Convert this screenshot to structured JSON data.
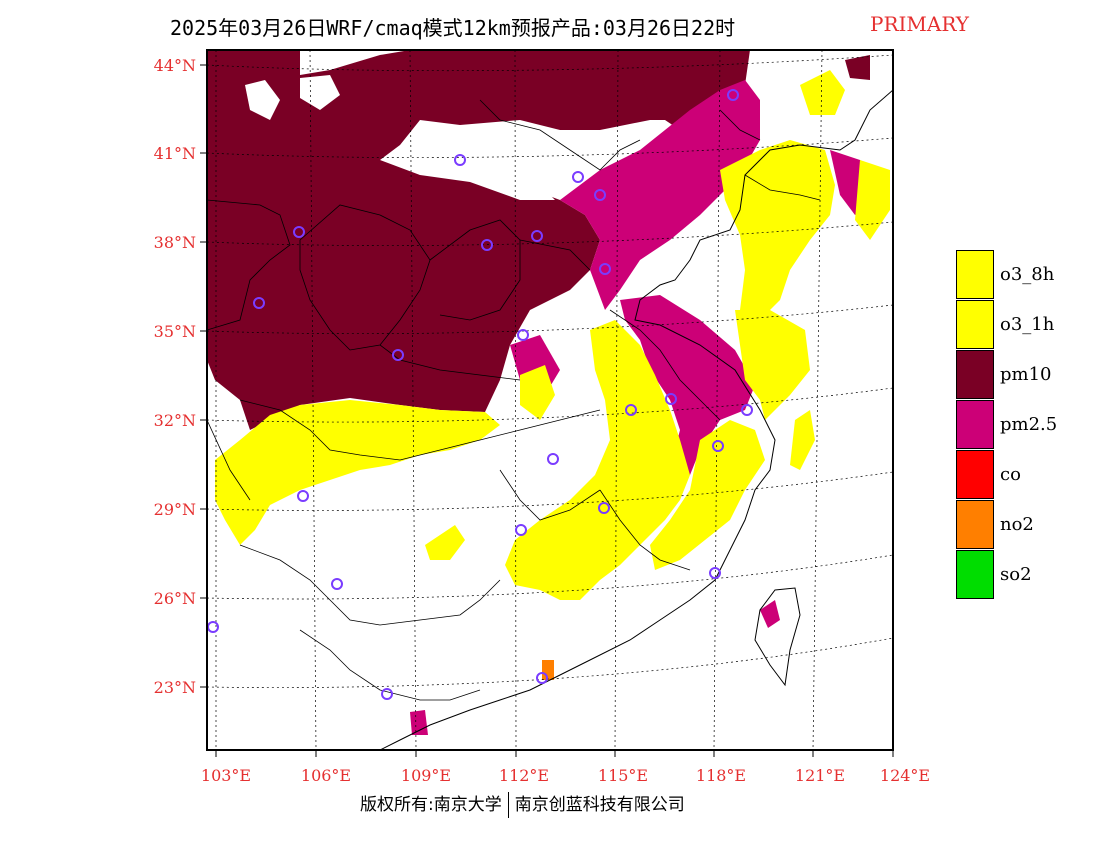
{
  "title": {
    "main": "2025年03月26日WRF/cmaq模式12km预报产品:03月26日22时",
    "tag": "PRIMARY"
  },
  "map": {
    "lat_labels": [
      "44°N",
      "41°N",
      "38°N",
      "35°N",
      "32°N",
      "29°N",
      "26°N",
      "23°N"
    ],
    "lon_labels": [
      "103°E",
      "106°E",
      "109°E",
      "112°E",
      "115°E",
      "118°E",
      "121°E",
      "124°E"
    ],
    "colors": {
      "o3_8h": "#ffff00",
      "o3_1h": "#ffff00",
      "pm10": "#7a0025",
      "pm2_5": "#cc0077",
      "co": "#ff0000",
      "no2": "#ff7f00",
      "so2": "#00dd00",
      "station": "#7a3cff",
      "frame": "#000000",
      "tick_text": "#e53030"
    }
  },
  "legend": {
    "items": [
      {
        "label": "o3_8h",
        "color": "#ffff00"
      },
      {
        "label": "o3_1h",
        "color": "#ffff00"
      },
      {
        "label": "pm10",
        "color": "#7a0025"
      },
      {
        "label": "pm2.5",
        "color": "#cc0077"
      },
      {
        "label": "co",
        "color": "#ff0000"
      },
      {
        "label": "no2",
        "color": "#ff7f00"
      },
      {
        "label": "so2",
        "color": "#00dd00"
      }
    ]
  },
  "footer": {
    "left": "版权所有:南京大学",
    "right": "南京创蓝科技有限公司"
  }
}
